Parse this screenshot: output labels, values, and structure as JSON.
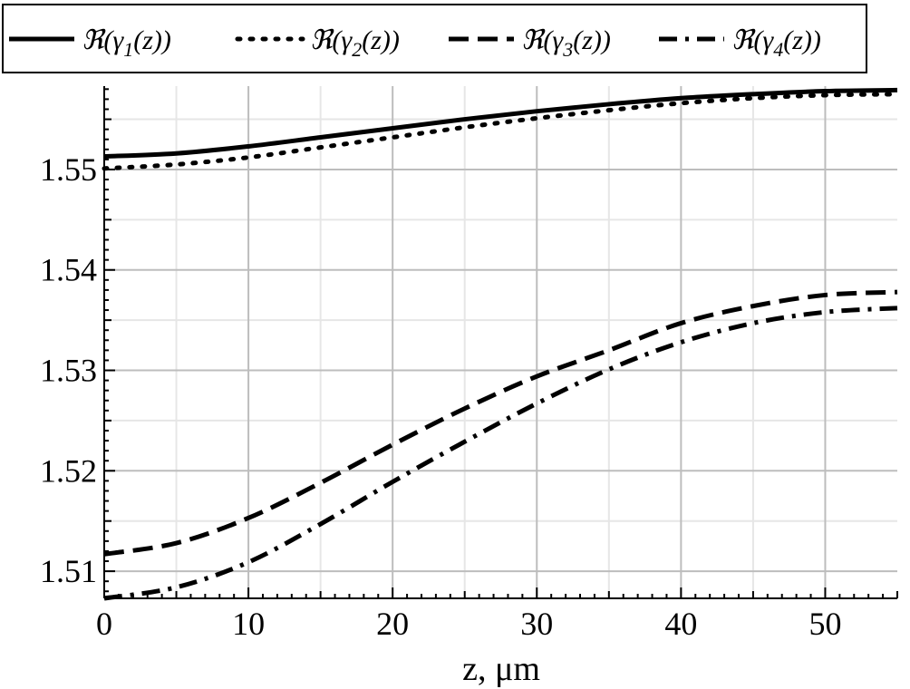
{
  "chart_data": {
    "type": "line",
    "xlabel": "z, μm",
    "ylabel": "",
    "title": "",
    "xlim": [
      0,
      55
    ],
    "ylim": [
      1.5073,
      1.5583
    ],
    "xticks": [
      0,
      10,
      20,
      30,
      40,
      50
    ],
    "xtick_labels": [
      "0",
      "10",
      "20",
      "30",
      "40",
      "50"
    ],
    "yticks": [
      1.51,
      1.52,
      1.53,
      1.54,
      1.55
    ],
    "ytick_labels": [
      "1.51",
      "1.52",
      "1.53",
      "1.54",
      "1.55"
    ],
    "grid": true,
    "legend_position": "top",
    "series": [
      {
        "name": "ℜ(γ1(z))",
        "legend_label": {
          "prefix": "ℜ(γ",
          "sub": "1",
          "suffix": "(z))"
        },
        "dash": "solid",
        "x": [
          0,
          5,
          10,
          15,
          20,
          25,
          30,
          35,
          40,
          45,
          50,
          55
        ],
        "y": [
          1.5513,
          1.5516,
          1.5523,
          1.5532,
          1.5541,
          1.555,
          1.5558,
          1.5565,
          1.5571,
          1.5575,
          1.5578,
          1.5579
        ]
      },
      {
        "name": "ℜ(γ2(z))",
        "legend_label": {
          "prefix": "ℜ(γ",
          "sub": "2",
          "suffix": "(z))"
        },
        "dash": "dotted",
        "x": [
          0,
          5,
          10,
          15,
          20,
          25,
          30,
          35,
          40,
          45,
          50,
          55
        ],
        "y": [
          1.5501,
          1.5505,
          1.5512,
          1.5522,
          1.5532,
          1.5542,
          1.5551,
          1.5559,
          1.5566,
          1.5571,
          1.5574,
          1.5575
        ]
      },
      {
        "name": "ℜ(γ3(z))",
        "legend_label": {
          "prefix": "ℜ(γ",
          "sub": "3",
          "suffix": "(z))"
        },
        "dash": "dashed",
        "x": [
          0,
          5,
          10,
          15,
          20,
          25,
          30,
          35,
          40,
          45,
          50,
          55
        ],
        "y": [
          1.5117,
          1.5128,
          1.5153,
          1.5188,
          1.5226,
          1.5262,
          1.5294,
          1.532,
          1.5347,
          1.5364,
          1.5375,
          1.5378
        ]
      },
      {
        "name": "ℜ(γ4(z))",
        "legend_label": {
          "prefix": "ℜ(γ",
          "sub": "4",
          "suffix": "(z))"
        },
        "dash": "dashdot",
        "x": [
          0,
          5,
          10,
          15,
          20,
          25,
          30,
          35,
          40,
          45,
          50,
          55
        ],
        "y": [
          1.5073,
          1.5084,
          1.5109,
          1.5147,
          1.5189,
          1.5229,
          1.5267,
          1.5301,
          1.5328,
          1.5347,
          1.5358,
          1.5362
        ]
      }
    ]
  }
}
